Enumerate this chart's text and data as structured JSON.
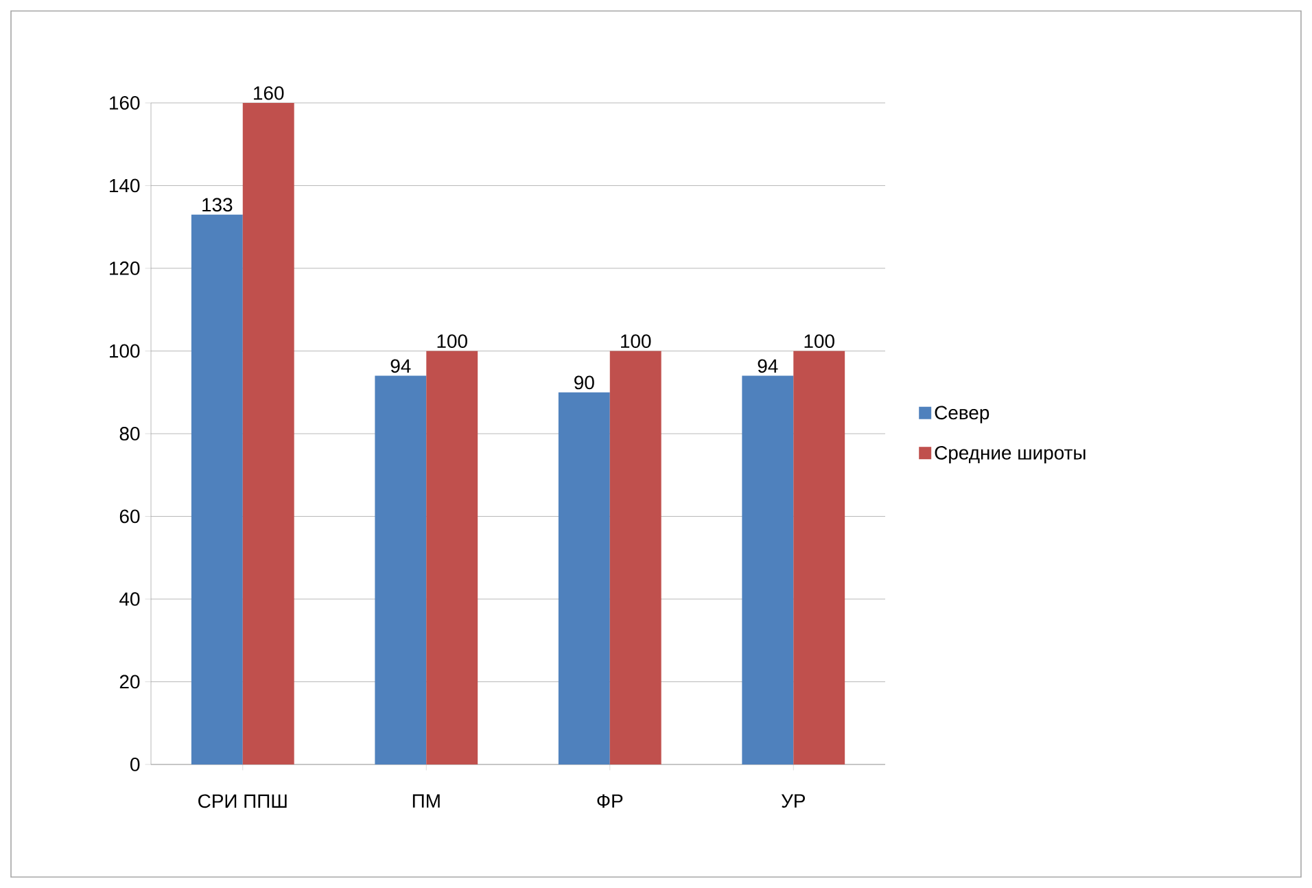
{
  "chart_data": {
    "type": "bar",
    "categories": [
      "СРИ ППШ",
      "ПМ",
      "ФР",
      "УР"
    ],
    "series": [
      {
        "name": "Север",
        "color": "#4f81bd",
        "values": [
          133,
          94,
          90,
          94
        ]
      },
      {
        "name": "Средние широты",
        "color": "#c0504d",
        "values": [
          160,
          100,
          100,
          100
        ]
      }
    ],
    "ylim": [
      0,
      160
    ],
    "yticks": [
      0,
      20,
      40,
      60,
      80,
      100,
      120,
      140,
      160
    ],
    "grid": "y",
    "legend": "right",
    "data_labels": true
  }
}
